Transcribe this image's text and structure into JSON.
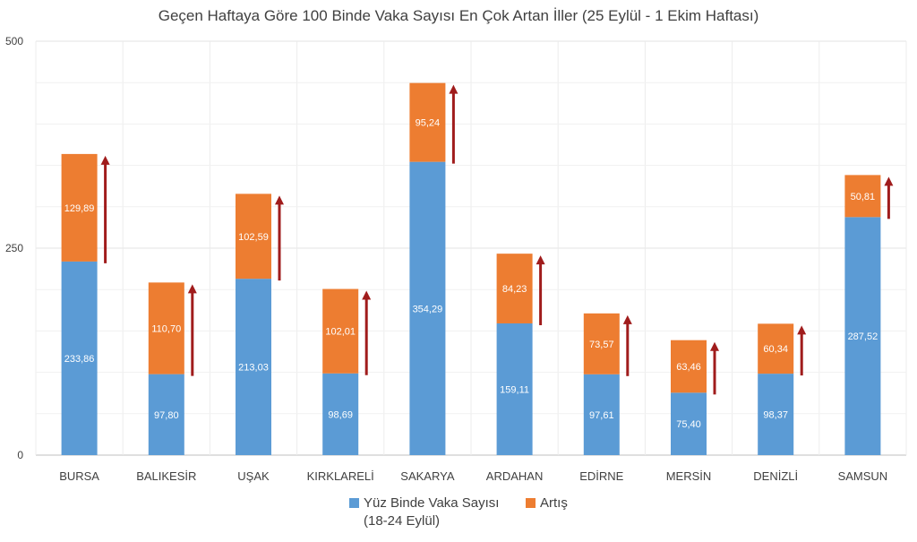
{
  "chart_data": {
    "type": "bar",
    "stacked": true,
    "title": "Geçen Haftaya Göre 100 Binde Vaka Sayısı En Çok Artan İller (25 Eylül - 1 Ekim Haftası)",
    "categories": [
      "BURSA",
      "BALIKESİR",
      "UŞAK",
      "KIRKLARELİ",
      "SAKARYA",
      "ARDAHAN",
      "EDİRNE",
      "MERSİN",
      "DENİZLİ",
      "SAMSUN"
    ],
    "series": [
      {
        "name": "Yüz Binde Vaka Sayısı",
        "name_line2": "(18-24 Eylül)",
        "color": "#5b9bd5",
        "values": [
          233.86,
          97.8,
          213.03,
          98.69,
          354.29,
          159.11,
          97.61,
          75.4,
          98.37,
          287.52
        ],
        "labels": [
          "233,86",
          "97,80",
          "213,03",
          "98,69",
          "354,29",
          "159,11",
          "97,61",
          "75,40",
          "98,37",
          "287,52"
        ]
      },
      {
        "name": "Artış",
        "color": "#ed7d31",
        "values": [
          129.89,
          110.7,
          102.59,
          102.01,
          95.24,
          84.23,
          73.57,
          63.46,
          60.34,
          50.81
        ],
        "labels": [
          "129,89",
          "110,70",
          "102,59",
          "102,01",
          "95,24",
          "84,23",
          "73,57",
          "63,46",
          "60,34",
          "50,81"
        ]
      }
    ],
    "ylim": [
      0,
      500
    ],
    "yticks": [
      0,
      250,
      500
    ],
    "ytick_labels": [
      "0",
      "250",
      "500"
    ],
    "grid": true,
    "legend_position": "bottom",
    "arrow_color": "#a01c1c",
    "xlabel": "",
    "ylabel": ""
  }
}
